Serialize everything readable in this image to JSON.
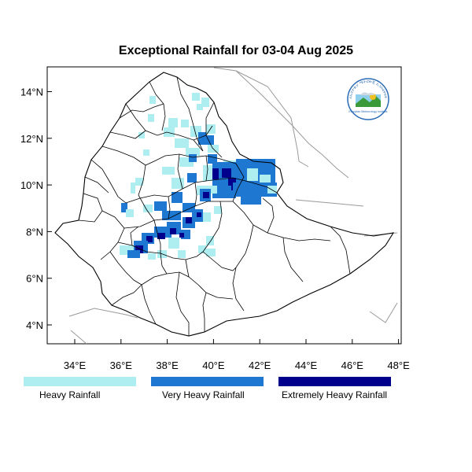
{
  "title": "Exceptional Rainfall for 03-04 Aug 2025",
  "x_ticks": [
    "34°E",
    "36°E",
    "38°E",
    "40°E",
    "42°E",
    "44°E",
    "46°E",
    "48°E"
  ],
  "y_ticks": [
    "4°N",
    "6°N",
    "8°N",
    "10°N",
    "12°N",
    "14°N"
  ],
  "legend": [
    {
      "label": "Heavy Rainfall",
      "color": "#aeeef0"
    },
    {
      "label": "Very Heavy Rainfall",
      "color": "#1e78d2"
    },
    {
      "label": "Extremely Heavy Rainfall",
      "color": "#00008c"
    }
  ],
  "logo": {
    "arc_text": "የኢትዮጵያ ሜትሮሎጂ ኢንስቲትዩት",
    "caption": "Ethiopian Meteorology Institute"
  },
  "colors": {
    "frame": "#000000",
    "country_border": "#000000",
    "neighbor_border": "#999999"
  }
}
